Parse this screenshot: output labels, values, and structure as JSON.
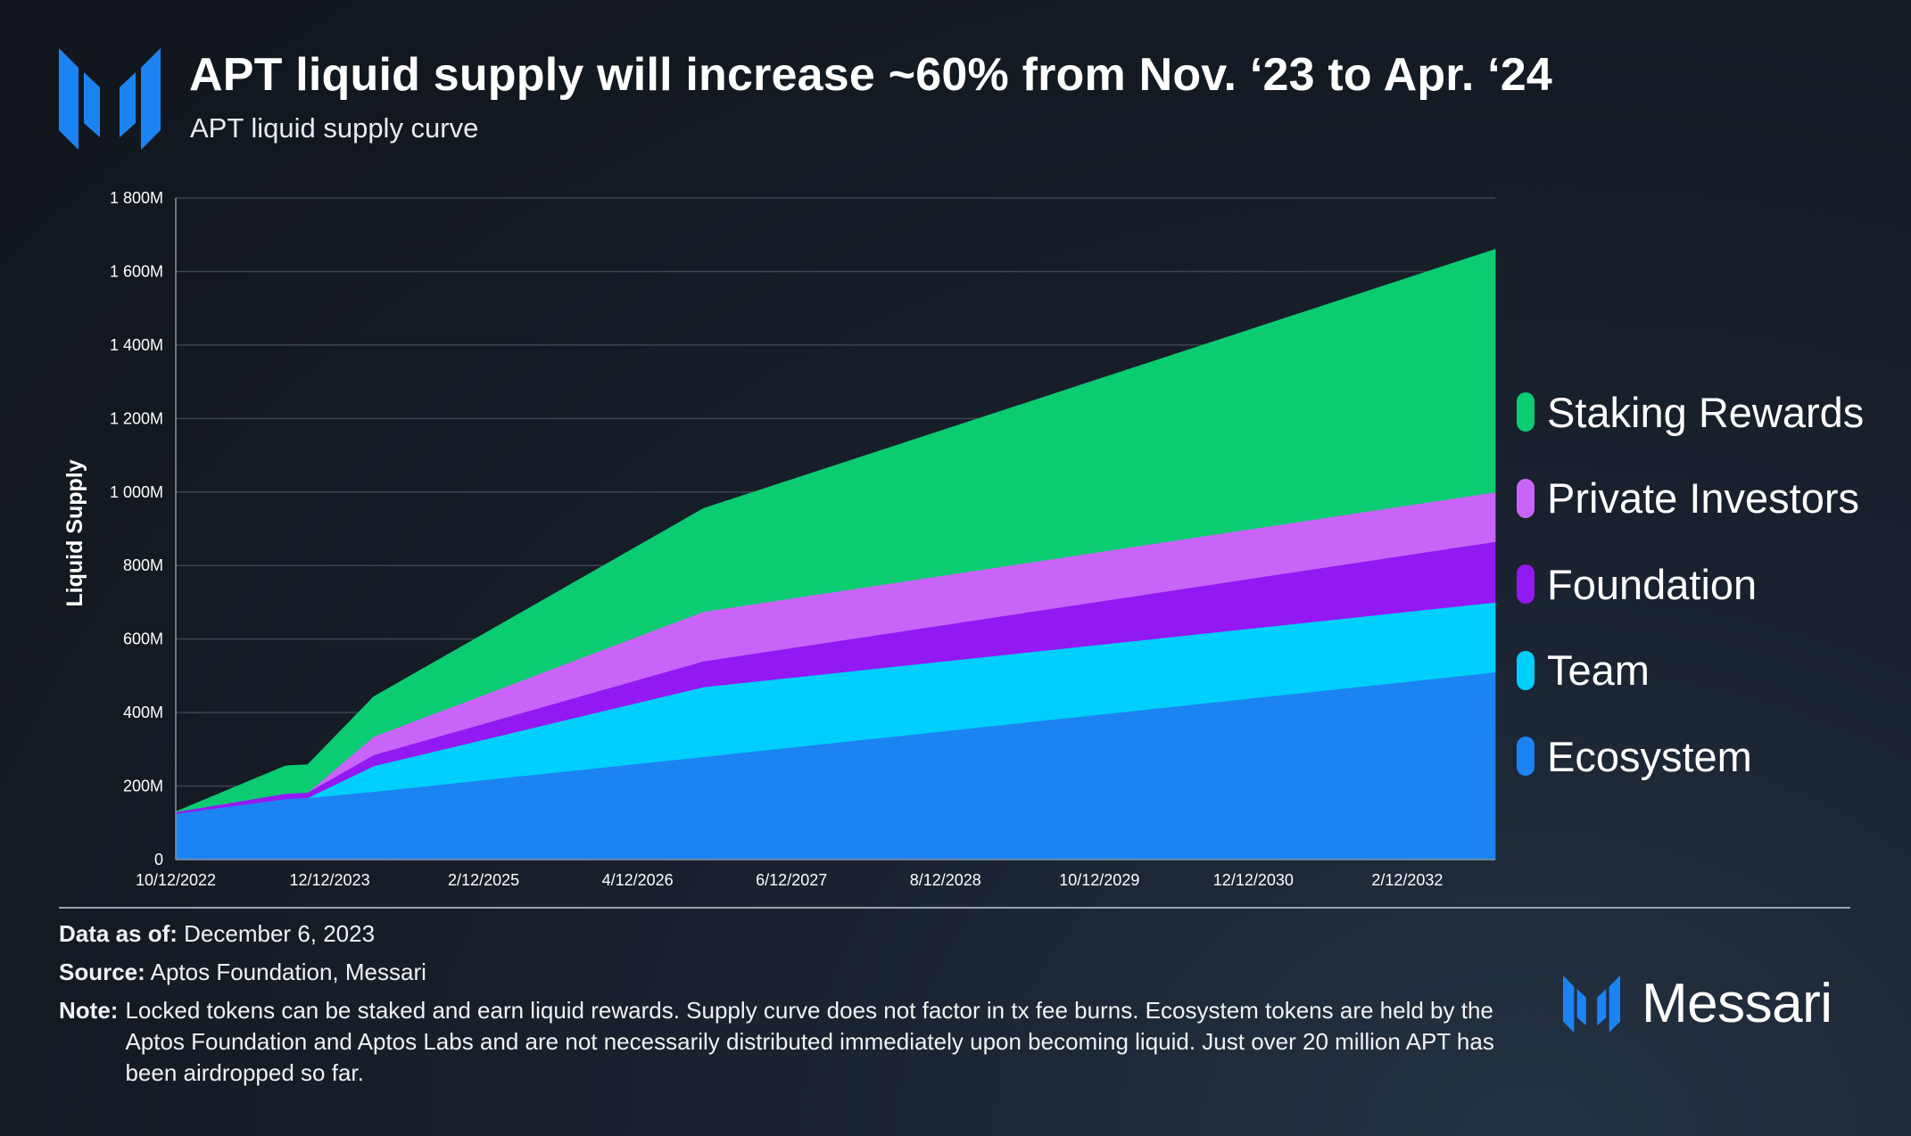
{
  "header": {
    "title": "APT liquid supply will increase ~60% from Nov. ‘23 to Apr. ‘24",
    "subtitle": "APT liquid supply curve"
  },
  "chart_data": {
    "type": "area",
    "stacked": true,
    "title": "APT liquid supply curve",
    "xlabel": "",
    "ylabel": "Liquid Supply",
    "ylim": [
      0,
      1800
    ],
    "y_unit": "M",
    "y_ticks": [
      0,
      200,
      400,
      600,
      800,
      1000,
      1200,
      1400,
      1600,
      1800
    ],
    "y_tick_labels": [
      "0",
      "200M",
      "400M",
      "600M",
      "800M",
      "1 000M",
      "1 200M",
      "1 400M",
      "1 600M",
      "1 800M"
    ],
    "x_tick_labels": [
      "10/12/2022",
      "12/12/2023",
      "2/12/2025",
      "4/12/2026",
      "6/12/2027",
      "8/12/2028",
      "10/12/2029",
      "12/12/2030",
      "2/12/2032"
    ],
    "x_tick_positions": [
      0,
      14,
      28,
      42,
      56,
      70,
      84,
      98,
      112
    ],
    "x": [
      0,
      10,
      12,
      18,
      48,
      120
    ],
    "x_range": [
      0,
      120
    ],
    "x_unit": "months since 10/12/2022",
    "grid": true,
    "legend_position": "right",
    "series": [
      {
        "name": "Ecosystem",
        "color": "#1c83f3",
        "values": [
          125,
          165,
          168,
          185,
          280,
          510
        ]
      },
      {
        "name": "Team",
        "color": "#00cffd",
        "values": [
          0,
          0,
          0,
          70,
          190,
          190
        ]
      },
      {
        "name": "Foundation",
        "color": "#9319f2",
        "values": [
          5,
          15,
          15,
          30,
          70,
          165
        ]
      },
      {
        "name": "Private Investors",
        "color": "#c865f8",
        "values": [
          0,
          0,
          0,
          50,
          135,
          135
        ]
      },
      {
        "name": "Staking Rewards",
        "color": "#0bcc71",
        "values": [
          0,
          75,
          75,
          108,
          280,
          660
        ]
      }
    ]
  },
  "legend": {
    "items": [
      {
        "label": "Staking Rewards",
        "color": "#0bcc71"
      },
      {
        "label": "Private Investors",
        "color": "#c865f8"
      },
      {
        "label": "Foundation",
        "color": "#9319f2"
      },
      {
        "label": "Team",
        "color": "#00cffd"
      },
      {
        "label": "Ecosystem",
        "color": "#1c83f3"
      }
    ]
  },
  "footer": {
    "data_as_of_label": "Data as of:",
    "data_as_of_value": "December 6, 2023",
    "source_label": "Source:",
    "source_value": "Aptos Foundation, Messari",
    "note_label": "Note:",
    "note_value": "Locked tokens can be staked and earn liquid rewards. Supply curve does not factor in tx fee burns. Ecosystem tokens are held by the Aptos Foundation and Aptos Labs and are not necessarily distributed immediately upon becoming liquid. Just over 20 million APT has been airdropped so far."
  },
  "brand": {
    "name": "Messari",
    "accent": "#1c83f3"
  },
  "icons": {
    "top_logo": "messari-logo-icon",
    "bottom_logo": "messari-logo-icon"
  }
}
